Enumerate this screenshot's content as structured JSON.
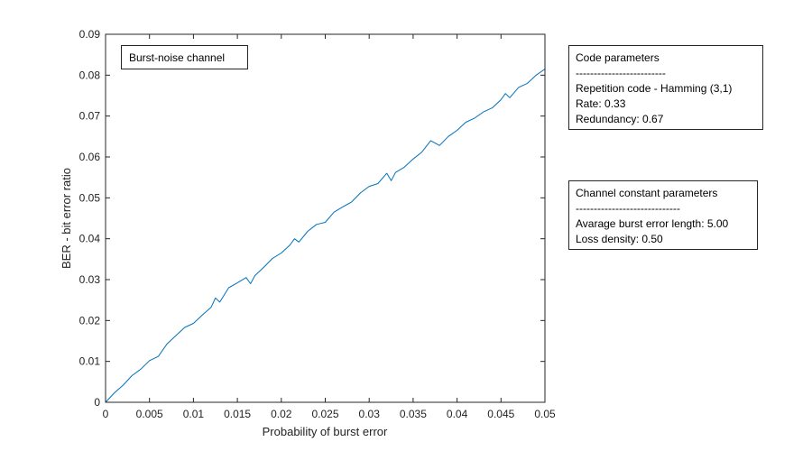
{
  "chart_data": {
    "type": "line",
    "xlabel": "Probability of burst error",
    "ylabel": "BER - bit error ratio",
    "xlim": [
      0,
      0.05
    ],
    "ylim": [
      0,
      0.09
    ],
    "xticks": [
      0,
      0.005,
      0.01,
      0.015,
      0.02,
      0.025,
      0.03,
      0.035,
      0.04,
      0.045,
      0.05
    ],
    "xtick_labels": [
      "0",
      "0.005",
      "0.01",
      "0.015",
      "0.02",
      "0.025",
      "0.03",
      "0.035",
      "0.04",
      "0.045",
      "0.05"
    ],
    "yticks": [
      0,
      0.01,
      0.02,
      0.03,
      0.04,
      0.05,
      0.06,
      0.07,
      0.08,
      0.09
    ],
    "ytick_labels": [
      "0",
      "0.01",
      "0.02",
      "0.03",
      "0.04",
      "0.05",
      "0.06",
      "0.07",
      "0.08",
      "0.09"
    ],
    "grid": false,
    "series": [
      {
        "color": "#0072bd",
        "x": [
          0,
          0.001,
          0.002,
          0.003,
          0.004,
          0.005,
          0.006,
          0.007,
          0.008,
          0.009,
          0.01,
          0.011,
          0.012,
          0.0125,
          0.013,
          0.014,
          0.015,
          0.016,
          0.0165,
          0.017,
          0.018,
          0.019,
          0.02,
          0.021,
          0.0215,
          0.022,
          0.023,
          0.024,
          0.025,
          0.026,
          0.027,
          0.028,
          0.029,
          0.03,
          0.031,
          0.032,
          0.0325,
          0.033,
          0.034,
          0.035,
          0.036,
          0.037,
          0.038,
          0.039,
          0.04,
          0.041,
          0.042,
          0.043,
          0.044,
          0.045,
          0.0455,
          0.046,
          0.047,
          0.048,
          0.049,
          0.05
        ],
        "y": [
          0,
          0.0023,
          0.0042,
          0.0065,
          0.0081,
          0.0102,
          0.0112,
          0.0143,
          0.0163,
          0.0183,
          0.0193,
          0.0213,
          0.0232,
          0.0255,
          0.0245,
          0.028,
          0.0292,
          0.0305,
          0.029,
          0.031,
          0.033,
          0.0352,
          0.0365,
          0.0385,
          0.04,
          0.0392,
          0.0418,
          0.0435,
          0.044,
          0.0465,
          0.0478,
          0.049,
          0.0512,
          0.0528,
          0.0535,
          0.056,
          0.0542,
          0.0562,
          0.0575,
          0.0595,
          0.0612,
          0.064,
          0.0628,
          0.065,
          0.0665,
          0.0685,
          0.0695,
          0.071,
          0.072,
          0.074,
          0.0755,
          0.0745,
          0.077,
          0.078,
          0.08,
          0.0815
        ]
      }
    ],
    "legend_box": {
      "text": "Burst-noise channel",
      "placement": "top-left"
    }
  },
  "annotations": {
    "code_parameters": {
      "title": "Code parameters",
      "separator": "-------------------------",
      "lines": [
        "Repetition code - Hamming (3,1)",
        "Rate: 0.33",
        "Redundancy: 0.67"
      ]
    },
    "channel_parameters": {
      "title": "Channel constant parameters",
      "separator": "-----------------------------",
      "lines": [
        "Avarage burst error length: 5.00",
        "Loss density: 0.50"
      ]
    }
  }
}
